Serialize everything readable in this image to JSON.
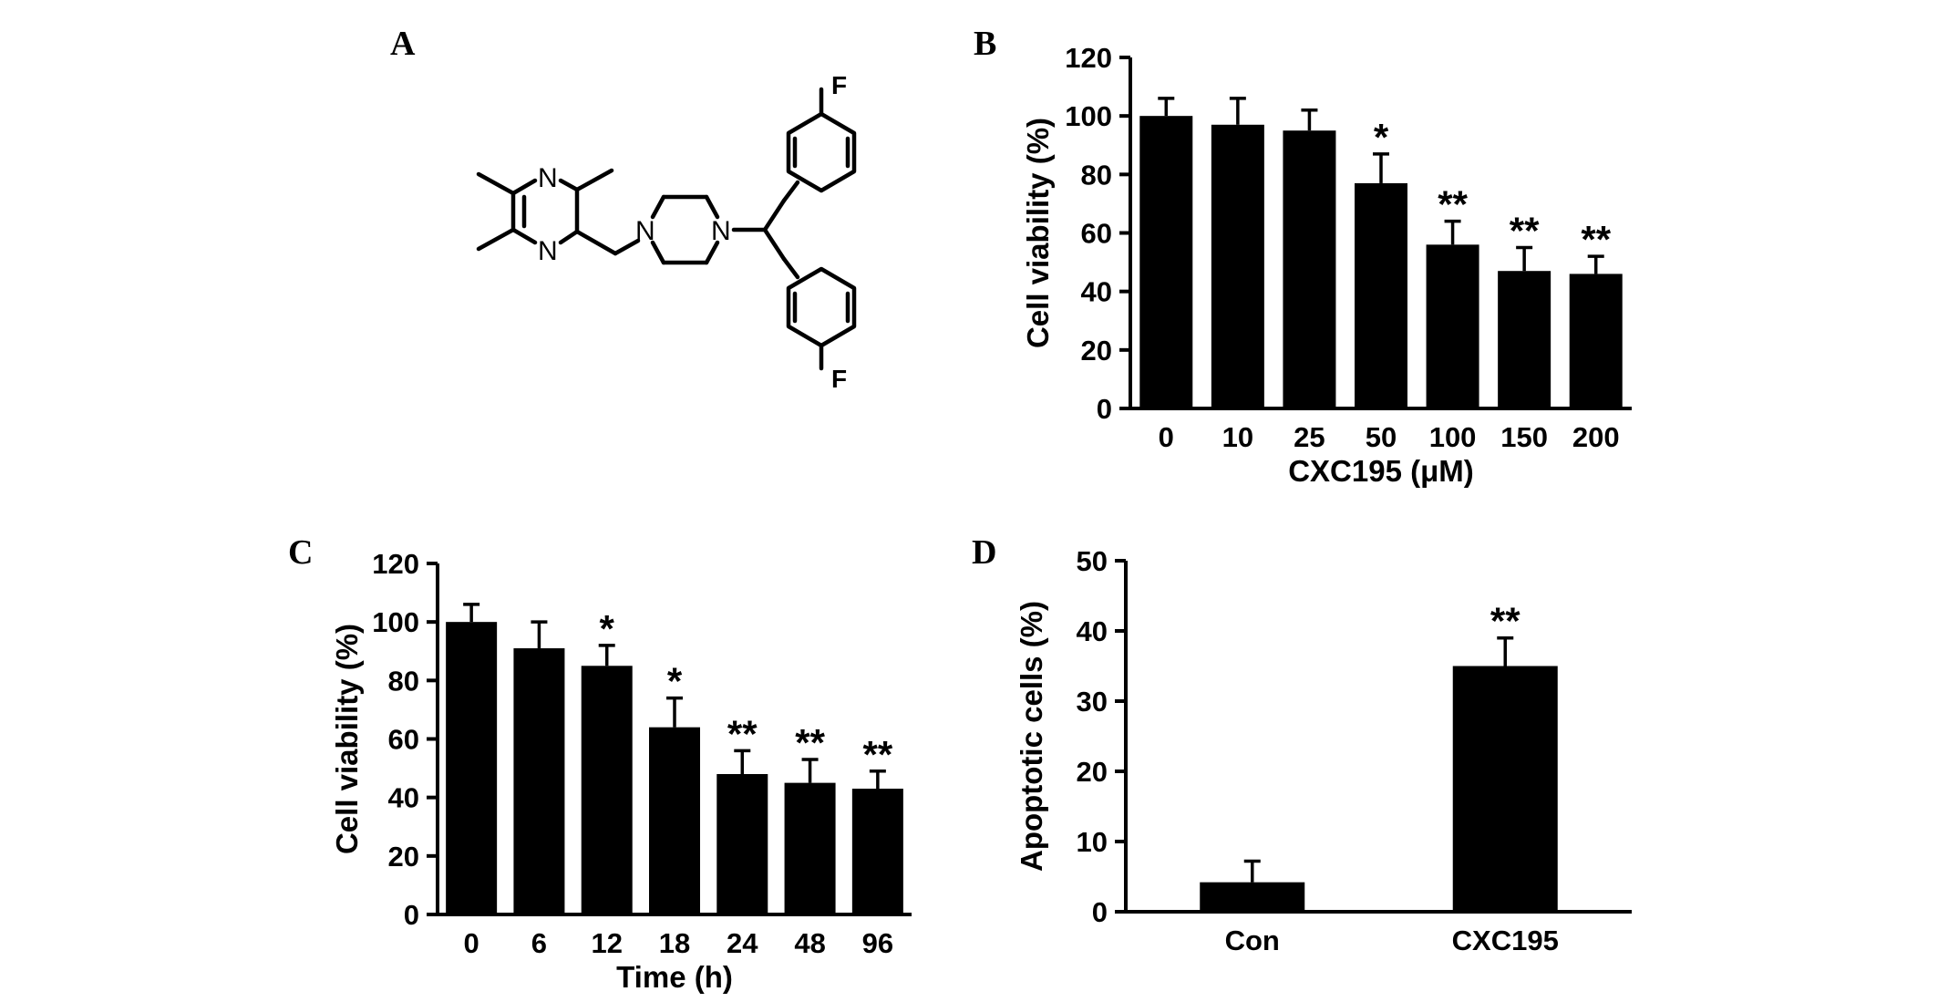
{
  "panel_labels": {
    "A": "A",
    "B": "B",
    "C": "C",
    "D": "D"
  },
  "structure": {
    "atoms": {
      "n_top": "N",
      "n_bottom": "N",
      "n_pip_left": "N",
      "n_pip_right": "N",
      "f_top": "F",
      "f_bottom": "F"
    }
  },
  "chart_data": [
    {
      "panel": "B",
      "type": "bar",
      "categories": [
        "0",
        "10",
        "25",
        "50",
        "100",
        "150",
        "200"
      ],
      "values": [
        100,
        97,
        95,
        77,
        56,
        47,
        46
      ],
      "errors": [
        6,
        9,
        7,
        10,
        8,
        8,
        6
      ],
      "significance": [
        "",
        "",
        "",
        "*",
        "**",
        "**",
        "**"
      ],
      "title": "",
      "xlabel": "CXC195 (μM)",
      "ylabel": "Cell viability (%)",
      "ylim": [
        0,
        120
      ],
      "yticks": [
        0,
        20,
        40,
        60,
        80,
        100,
        120
      ],
      "bar_color": "#000000",
      "grid": false
    },
    {
      "panel": "C",
      "type": "bar",
      "categories": [
        "0",
        "6",
        "12",
        "18",
        "24",
        "48",
        "96"
      ],
      "values": [
        100,
        91,
        85,
        64,
        48,
        45,
        43
      ],
      "errors": [
        6,
        9,
        7,
        10,
        8,
        8,
        6
      ],
      "significance": [
        "",
        "",
        "*",
        "*",
        "**",
        "**",
        "**"
      ],
      "title": "",
      "xlabel": "Time (h)",
      "ylabel": "Cell viability (%)",
      "ylim": [
        0,
        120
      ],
      "yticks": [
        0,
        20,
        40,
        60,
        80,
        100,
        120
      ],
      "bar_color": "#000000",
      "grid": false
    },
    {
      "panel": "D",
      "type": "bar",
      "categories": [
        "Con",
        "CXC195"
      ],
      "values": [
        4.2,
        35
      ],
      "errors": [
        3,
        4
      ],
      "significance": [
        "",
        "**"
      ],
      "title": "",
      "xlabel": "",
      "ylabel": "Apoptotic cells (%)",
      "ylim": [
        0,
        50
      ],
      "yticks": [
        0,
        10,
        20,
        30,
        40,
        50
      ],
      "bar_color": "#000000",
      "grid": false
    }
  ]
}
